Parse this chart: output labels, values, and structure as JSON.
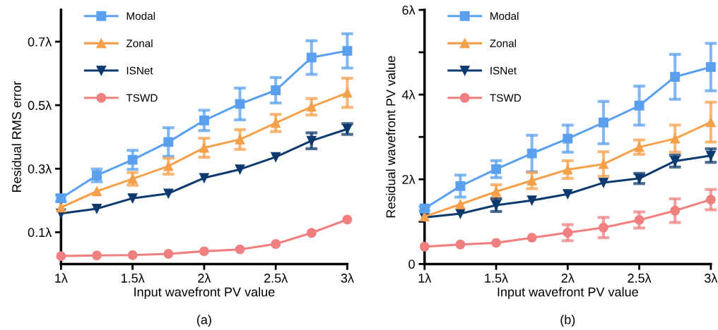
{
  "chart_data": [
    {
      "type": "line",
      "xlabel": "Input wavefront PV value",
      "ylabel": "Residual RMS error",
      "annotations": [
        "(a)"
      ],
      "x": [
        1,
        1.25,
        1.5,
        1.75,
        2,
        2.25,
        2.5,
        2.75,
        3
      ],
      "xlim": [
        1,
        3
      ],
      "xticks": [
        {
          "value": 1,
          "label": "1λ"
        },
        {
          "value": 1.5,
          "label": "1.5λ"
        },
        {
          "value": 2,
          "label": "2λ"
        },
        {
          "value": 2.5,
          "label": "2.5λ"
        },
        {
          "value": 3,
          "label": "3λ"
        }
      ],
      "ylim": [
        0,
        0.8
      ],
      "yticks": [
        {
          "value": 0.1,
          "label": "0.1λ"
        },
        {
          "value": 0.3,
          "label": "0.3λ"
        },
        {
          "value": 0.5,
          "label": "0.5λ"
        },
        {
          "value": 0.7,
          "label": "0.7λ"
        }
      ],
      "grid": false,
      "legend": "top left",
      "series": [
        {
          "name": "Modal",
          "color": "#5aa0ee",
          "marker": "square",
          "values": [
            0.207,
            0.279,
            0.328,
            0.384,
            0.452,
            0.504,
            0.547,
            0.65,
            0.671
          ],
          "errors": [
            0.01,
            0.02,
            0.03,
            0.045,
            0.032,
            0.05,
            0.04,
            0.053,
            0.054
          ]
        },
        {
          "name": "Zonal",
          "color": "#f5a04a",
          "marker": "triangle",
          "values": [
            0.178,
            0.229,
            0.268,
            0.308,
            0.366,
            0.392,
            0.444,
            0.495,
            0.539
          ],
          "errors": [
            null,
            null,
            0.02,
            0.025,
            0.03,
            0.031,
            0.027,
            0.026,
            0.046
          ]
        },
        {
          "name": "ISNet",
          "color": "#0d3a6e",
          "marker": "triangle_down",
          "values": [
            0.159,
            0.174,
            0.207,
            0.222,
            0.271,
            0.298,
            0.337,
            0.388,
            0.425
          ],
          "errors": [
            null,
            null,
            null,
            null,
            null,
            null,
            null,
            0.025,
            0.017
          ]
        },
        {
          "name": "TSWD",
          "color": "#f07f80",
          "marker": "circle",
          "values": [
            0.025,
            0.027,
            0.028,
            0.032,
            0.04,
            0.046,
            0.063,
            0.098,
            0.14
          ]
        }
      ]
    },
    {
      "type": "line",
      "xlabel": "Input wavefront PV value",
      "ylabel": "Residual wavefront PV value",
      "annotations": [
        "(b)"
      ],
      "x": [
        1,
        1.25,
        1.5,
        1.75,
        2,
        2.25,
        2.5,
        2.75,
        3
      ],
      "xlim": [
        1,
        3
      ],
      "xticks": [
        {
          "value": 1,
          "label": "1λ"
        },
        {
          "value": 1.5,
          "label": "1.5λ"
        },
        {
          "value": 2,
          "label": "2λ"
        },
        {
          "value": 2.5,
          "label": "2.5λ"
        },
        {
          "value": 3,
          "label": "3λ"
        }
      ],
      "ylim": [
        0,
        6
      ],
      "yticks": [
        0,
        {
          "value": 1,
          "label": null
        },
        {
          "value": 2,
          "label": "2λ"
        },
        {
          "value": 3,
          "label": null
        },
        {
          "value": 4,
          "label": "4λ"
        },
        {
          "value": 5,
          "label": null
        },
        {
          "value": 6,
          "label": "6λ"
        }
      ],
      "grid": false,
      "legend": "top left",
      "series": [
        {
          "name": "Modal",
          "color": "#5aa0ee",
          "marker": "square",
          "values": [
            1.31,
            1.84,
            2.24,
            2.61,
            2.96,
            3.34,
            3.74,
            4.42,
            4.65
          ],
          "errors": [
            0.05,
            0.26,
            0.2,
            0.43,
            0.32,
            0.5,
            0.46,
            0.53,
            0.56
          ]
        },
        {
          "name": "Zonal",
          "color": "#f5a04a",
          "marker": "triangle",
          "values": [
            1.12,
            1.41,
            1.71,
            1.97,
            2.23,
            2.36,
            2.76,
            2.96,
            3.35
          ],
          "errors": [
            null,
            null,
            0.16,
            0.19,
            0.21,
            0.29,
            0.17,
            0.32,
            0.47
          ]
        },
        {
          "name": "ISNet",
          "color": "#0d3a6e",
          "marker": "triangle_down",
          "values": [
            1.1,
            1.19,
            1.39,
            1.5,
            1.65,
            1.92,
            2.02,
            2.43,
            2.56
          ],
          "errors": [
            null,
            null,
            0.15,
            null,
            null,
            null,
            0.12,
            0.14,
            0.16
          ]
        },
        {
          "name": "TSWD",
          "color": "#f07f80",
          "marker": "circle",
          "values": [
            0.41,
            0.46,
            0.5,
            0.62,
            0.74,
            0.86,
            1.04,
            1.26,
            1.52
          ],
          "errors": [
            null,
            null,
            null,
            null,
            0.19,
            0.24,
            0.19,
            0.28,
            0.24
          ]
        }
      ]
    }
  ]
}
